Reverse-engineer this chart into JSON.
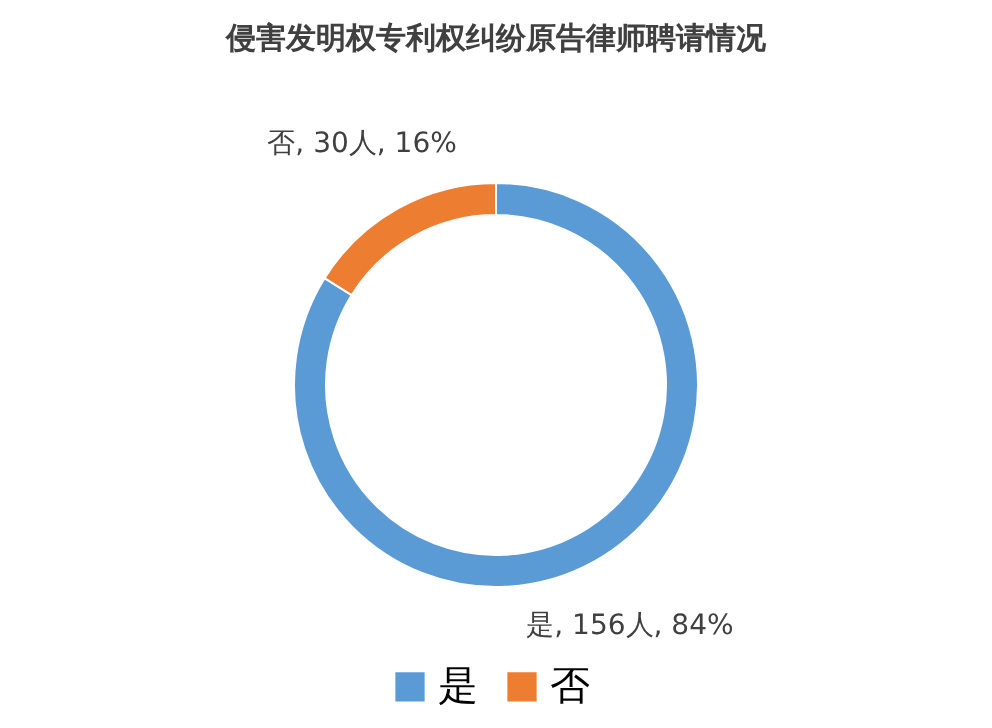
{
  "chart_data": {
    "type": "donut",
    "title": "侵害发明权专利权纠纷原告律师聘请情况",
    "categories": [
      "是",
      "否"
    ],
    "values": [
      156,
      30
    ],
    "colors": [
      "#5b9bd5",
      "#ed7d31"
    ],
    "value_labels": [
      "是, 156人, 84%",
      "否, 30人, 16%"
    ],
    "legend": "bottom"
  }
}
